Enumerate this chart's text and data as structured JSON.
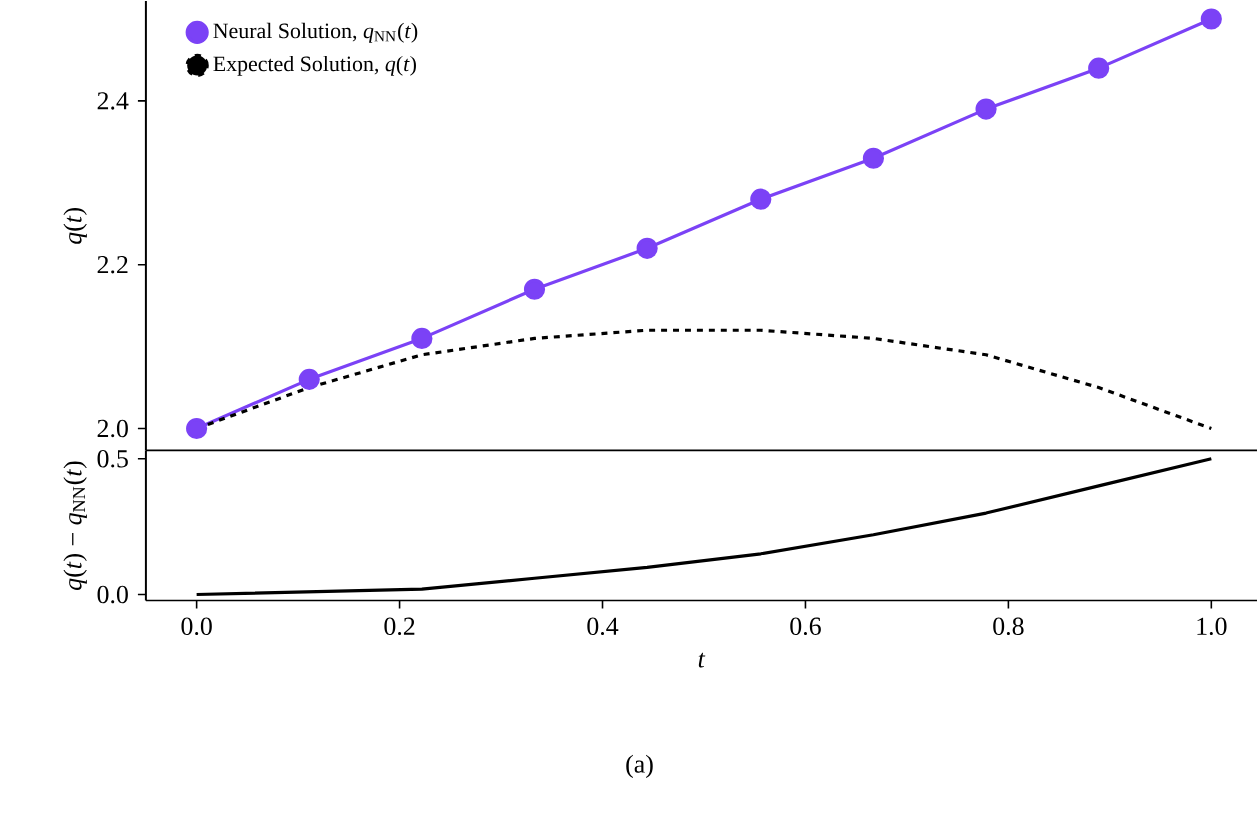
{
  "chart_data": [
    {
      "type": "line",
      "ylabel": "*q*(*t*)",
      "x": [
        0,
        0.111,
        0.222,
        0.333,
        0.444,
        0.556,
        0.667,
        0.778,
        0.889,
        1.0
      ],
      "series": [
        {
          "name": "Neural Solution, *q*$_{NN}$(*t*)",
          "color": "#7b42f6",
          "marker": "circle",
          "line_style": "solid",
          "values": [
            2.0,
            2.06,
            2.11,
            2.17,
            2.22,
            2.28,
            2.33,
            2.39,
            2.44,
            2.5
          ]
        },
        {
          "name": "Expected Solution, *q*(*t*)",
          "color": "#000000",
          "marker": "none",
          "line_style": "dashed",
          "values": [
            2.0,
            2.05,
            2.09,
            2.11,
            2.12,
            2.12,
            2.11,
            2.09,
            2.05,
            2.0
          ]
        }
      ],
      "xlim": [
        -0.05,
        1.045
      ],
      "ylim": [
        1.973,
        2.522
      ],
      "yticks": [
        {
          "value": 2.0,
          "label": "2.0"
        },
        {
          "value": 2.2,
          "label": "2.2"
        },
        {
          "value": 2.4,
          "label": "2.4"
        }
      ],
      "tick_labels": "y",
      "legend": "top left",
      "grid": false
    },
    {
      "type": "line",
      "xlabel": "*t*",
      "ylabel": "*q*(*t*) − *q*$_{NN}$(*t*)",
      "x": [
        0,
        0.111,
        0.222,
        0.333,
        0.444,
        0.556,
        0.667,
        0.778,
        0.889,
        1.0
      ],
      "values": [
        0.0,
        0.01,
        0.02,
        0.06,
        0.1,
        0.15,
        0.22,
        0.3,
        0.4,
        0.5
      ],
      "color": "#000000",
      "xlim": [
        -0.05,
        1.045
      ],
      "ylim": [
        -0.022,
        0.53
      ],
      "xticks": [
        {
          "value": 0.0,
          "label": "0.0"
        },
        {
          "value": 0.2,
          "label": "0.2"
        },
        {
          "value": 0.4,
          "label": "0.4"
        },
        {
          "value": 0.6,
          "label": "0.6"
        },
        {
          "value": 0.8,
          "label": "0.8"
        },
        {
          "value": 1.0,
          "label": "1.0"
        }
      ],
      "yticks": [
        {
          "value": 0.0,
          "label": "0.0"
        },
        {
          "value": 0.5,
          "label": "0.5"
        }
      ],
      "annotations": [
        "(a)"
      ],
      "grid": false
    }
  ]
}
